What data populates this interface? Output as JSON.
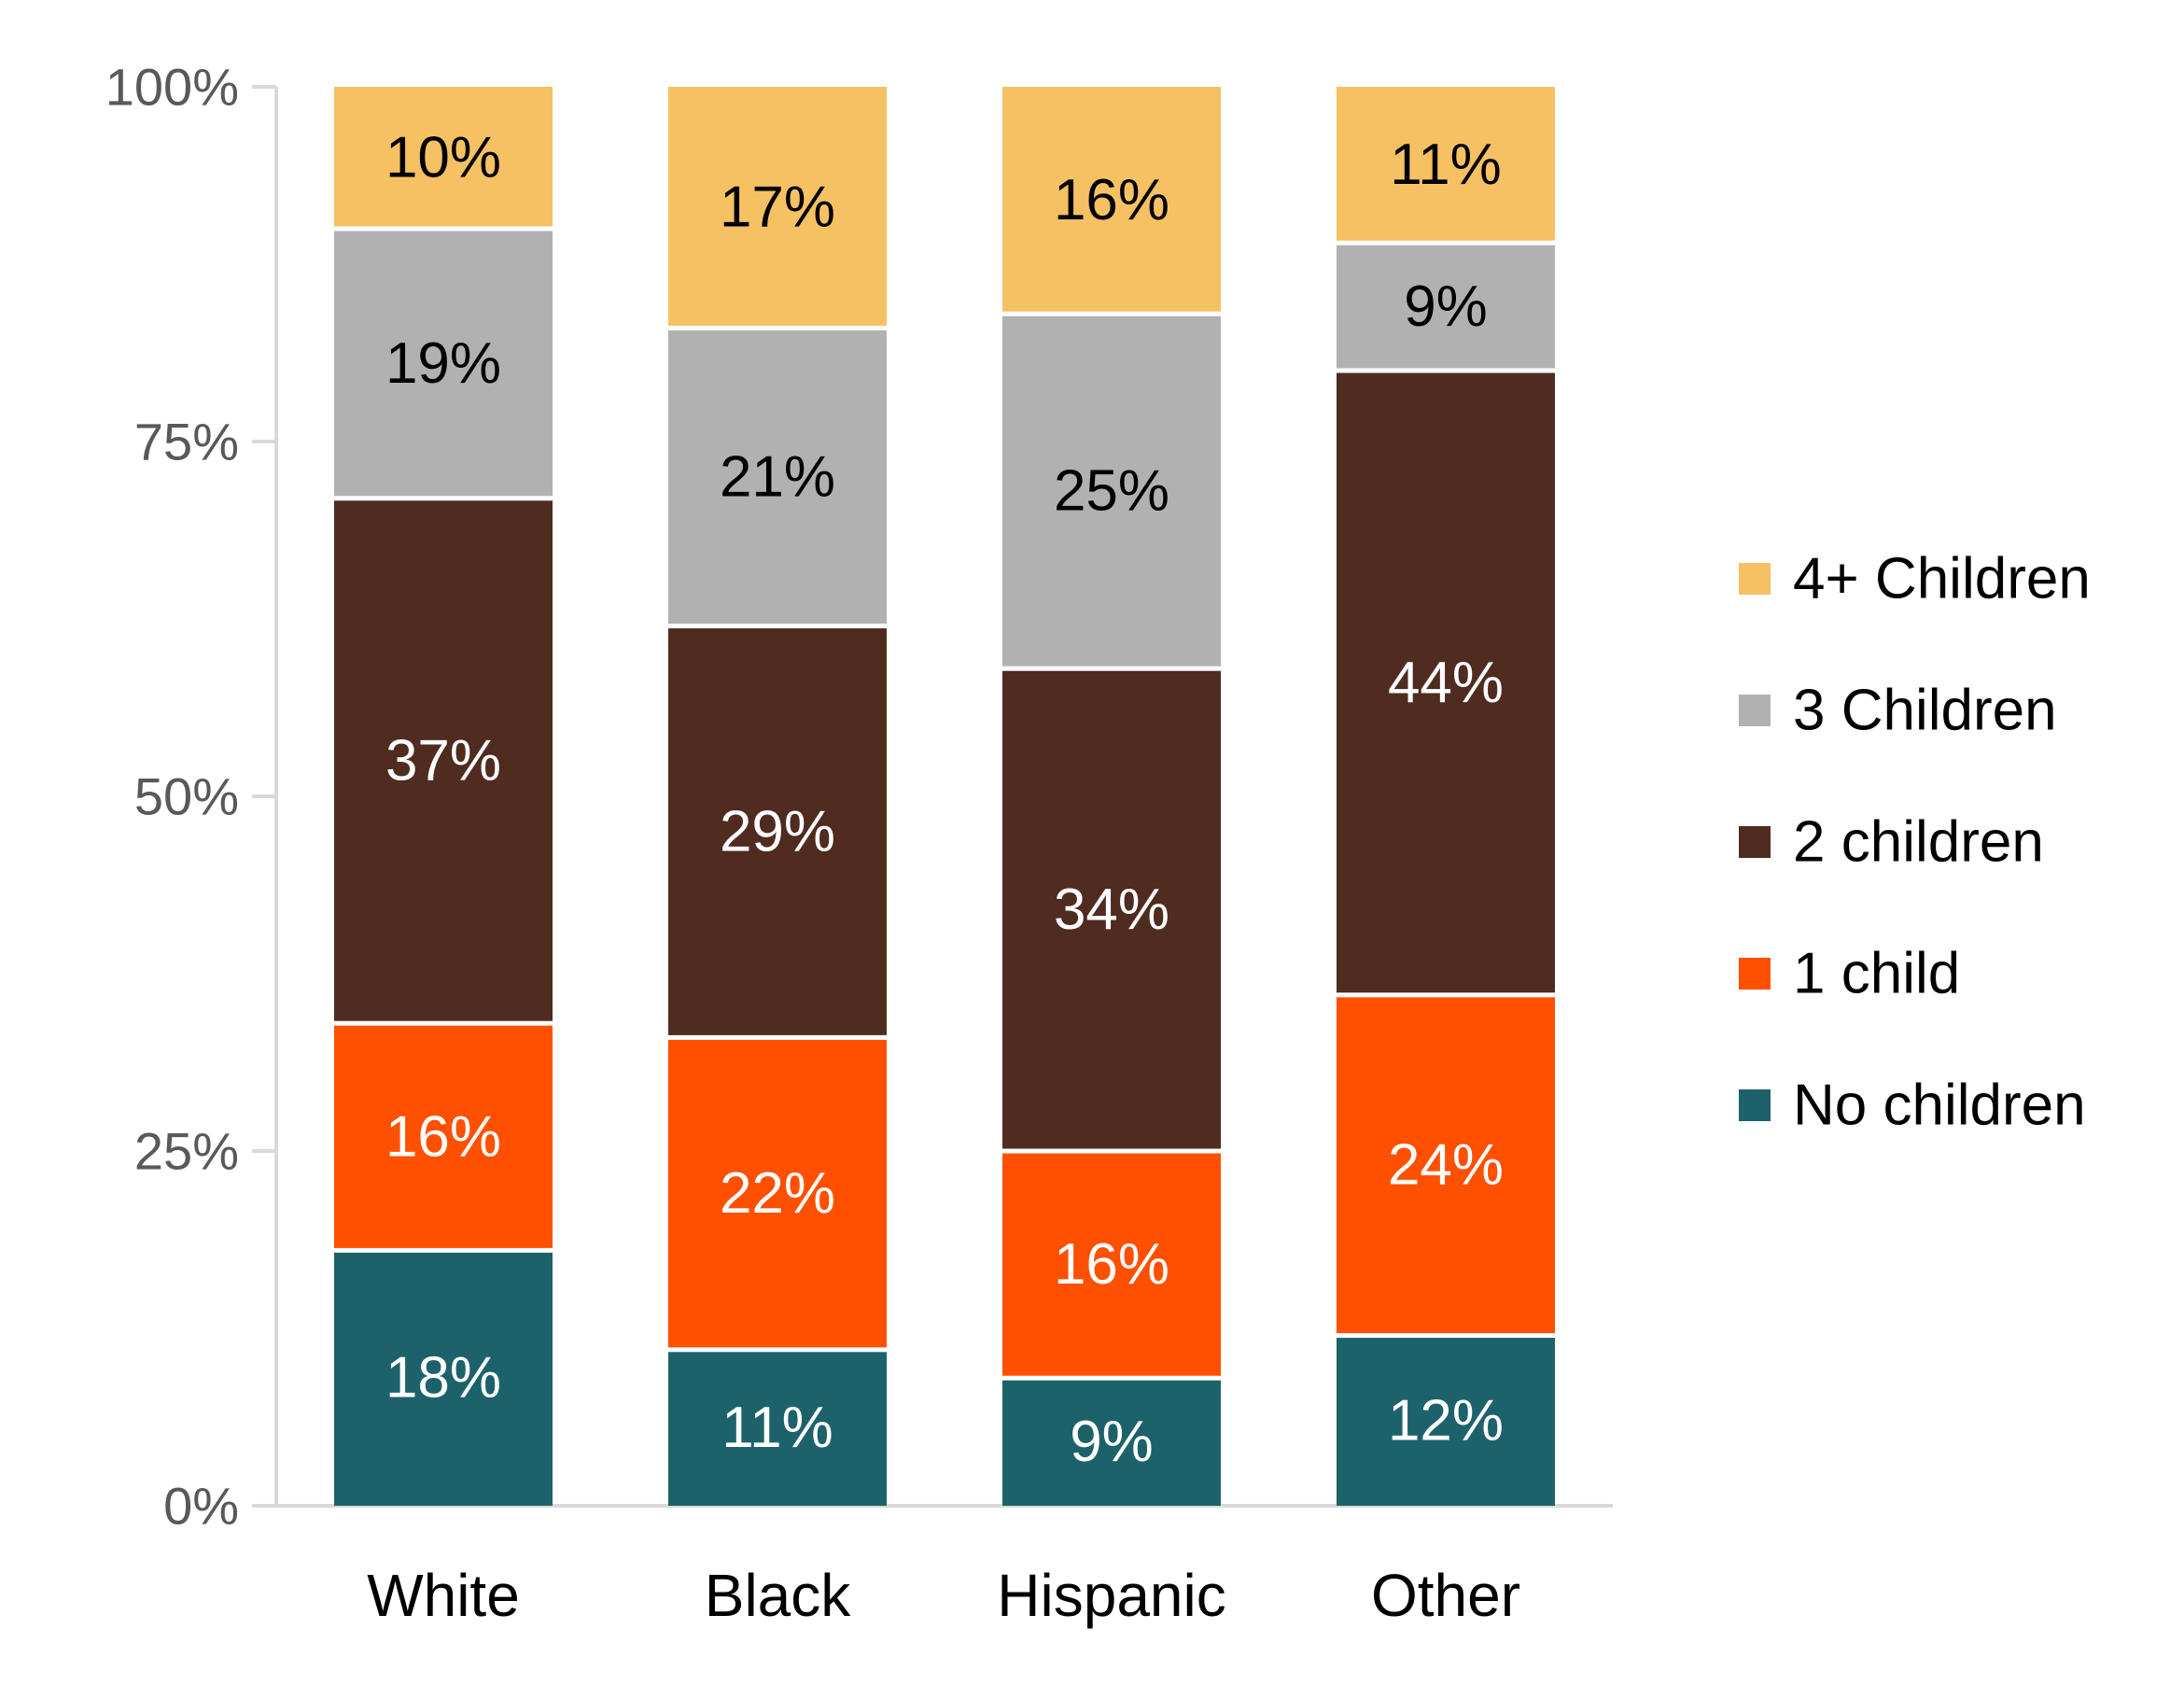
{
  "chart_data": {
    "type": "bar",
    "stacked": true,
    "percent_scale": true,
    "title": "",
    "xlabel": "",
    "ylabel": "",
    "ylim": [
      0,
      100
    ],
    "yticks": [
      0,
      25,
      50,
      75,
      100
    ],
    "ytick_labels": [
      "0%",
      "25%",
      "50%",
      "75%",
      "100%"
    ],
    "grid": false,
    "legend_position": "right",
    "categories": [
      "White",
      "Black",
      "Hispanic",
      "Other"
    ],
    "series": [
      {
        "name": "No children",
        "color": "#1d626b",
        "label_color": "#ffffff",
        "values": [
          18,
          11,
          9,
          12
        ],
        "labels": [
          "18%",
          "11%",
          "9%",
          "12%"
        ]
      },
      {
        "name": "1 child",
        "color": "#ff5000",
        "label_color": "#ffffff",
        "values": [
          16,
          22,
          16,
          24
        ],
        "labels": [
          "16%",
          "22%",
          "16%",
          "24%"
        ]
      },
      {
        "name": "2 children",
        "color": "#4f2b20",
        "label_color": "#ffffff",
        "values": [
          37,
          29,
          34,
          44
        ],
        "labels": [
          "37%",
          "29%",
          "34%",
          "44%"
        ]
      },
      {
        "name": "3 Children",
        "color": "#b1b1b1",
        "label_color": "#000000",
        "values": [
          19,
          21,
          25,
          9
        ],
        "labels": [
          "19%",
          "21%",
          "25%",
          "9%"
        ]
      },
      {
        "name": "4+ Children",
        "color": "#f5c163",
        "label_color": "#000000",
        "values": [
          10,
          17,
          16,
          11
        ],
        "labels": [
          "10%",
          "17%",
          "16%",
          "11%"
        ]
      }
    ],
    "legend_order": [
      "4+ Children",
      "3 Children",
      "2 children",
      "1 child",
      "No children"
    ],
    "axis_color": "#d9d9d9",
    "tick_label_color": "#595959",
    "category_label_color": "#000000"
  }
}
